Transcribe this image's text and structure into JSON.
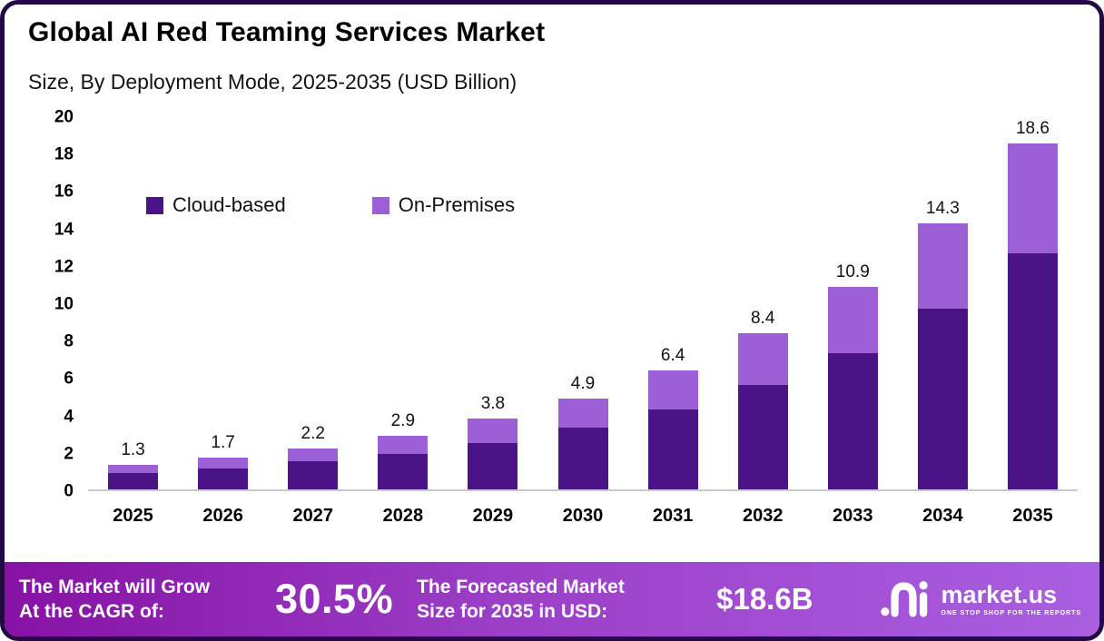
{
  "title": "Global AI Red Teaming Services Market",
  "subtitle": "Size, By Deployment Mode, 2025-2035 (USD Billion)",
  "chart_data": {
    "type": "bar",
    "stacked": true,
    "title": "Global AI Red Teaming Services Market Size, By Deployment Mode, 2025-2035 (USD Billion)",
    "categories": [
      "2025",
      "2026",
      "2027",
      "2028",
      "2029",
      "2030",
      "2031",
      "2032",
      "2033",
      "2034",
      "2035"
    ],
    "series": [
      {
        "name": "Cloud-based",
        "color": "#4a1486",
        "values": [
          0.9,
          1.1,
          1.5,
          1.9,
          2.5,
          3.3,
          4.3,
          5.6,
          7.3,
          9.7,
          12.7
        ]
      },
      {
        "name": "On-Premises",
        "color": "#9c5fd6",
        "values": [
          0.4,
          0.6,
          0.7,
          1.0,
          1.3,
          1.6,
          2.1,
          2.8,
          3.6,
          4.6,
          5.9
        ]
      }
    ],
    "totals": [
      1.3,
      1.7,
      2.2,
      2.9,
      3.8,
      4.9,
      6.4,
      8.4,
      10.9,
      14.3,
      18.6
    ],
    "ylim": [
      0,
      20
    ],
    "yticks": [
      0,
      2,
      4,
      6,
      8,
      10,
      12,
      14,
      16,
      18,
      20
    ],
    "xlabel": "",
    "ylabel": "",
    "grid": false,
    "legend_position": "upper-left-inside"
  },
  "footer": {
    "cagr_label_line1": "The Market will Grow",
    "cagr_label_line2": "At the CAGR of:",
    "cagr_value": "30.5%",
    "forecast_label_line1": "The Forecasted Market",
    "forecast_label_line2": "Size for 2035 in USD:",
    "forecast_value": "$18.6B",
    "brand_name": "market.us",
    "brand_tagline": "ONE STOP SHOP FOR THE REPORTS"
  },
  "colors": {
    "frame_border": "#230a46",
    "cloud_based": "#4a1486",
    "on_premises": "#9c5fd6",
    "banner_gradient_start": "#8612a4",
    "banner_gradient_end": "#a95fe0",
    "axis_line": "#c9c9c9"
  }
}
